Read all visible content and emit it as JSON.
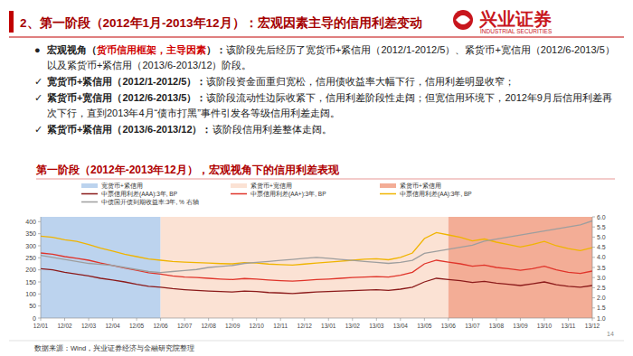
{
  "slide": {
    "header": "2、第一阶段（2012年1月-2013年12月）：宏观因素主导的信用利差变动",
    "logo": {
      "name": "兴业证券",
      "english": "INDUSTRIAL SECURITIES"
    },
    "bullets": [
      {
        "symbol": "●",
        "runs": [
          {
            "text": "宏观视角（",
            "style": "bold"
          },
          {
            "text": "货币信用框架，主导因素",
            "style": "red"
          },
          {
            "text": "）：",
            "style": "bold"
          },
          {
            "text": "该阶段先后经历了宽货币+紧信用（2012/1-2012/5）、紧货币+宽信用（2012/6-2013/5）以及紧货币+紧信用（2013/6-2013/12）阶段。",
            "style": "plain"
          }
        ]
      },
      {
        "symbol": "✓",
        "runs": [
          {
            "text": "宽货币+紧信用（2012/1-2012/5）：",
            "style": "bold"
          },
          {
            "text": "该阶段资金面重归宽松，信用债收益率大幅下行，信用利差明显收窄；",
            "style": "plain"
          }
        ]
      },
      {
        "symbol": "✓",
        "runs": [
          {
            "text": "紧货币+宽信用（2012/6-2013/5）：",
            "style": "bold"
          },
          {
            "text": "该阶段流动性边际收紧下，信用利差阶段性走阔；但宽信用环境下，2012年9月后信用利差再次下行，直到2013年4月“债市打黑”事件引发各等级信用利差走阔。",
            "style": "plain"
          }
        ]
      },
      {
        "symbol": "✓",
        "runs": [
          {
            "text": "紧货币+紧信用（2013/6-2013/12）：",
            "style": "bold"
          },
          {
            "text": "该阶段信用利差整体走阔。",
            "style": "plain"
          }
        ]
      }
    ],
    "source": "数据来源：Wind，兴业证券经济与金融研究院整理",
    "page": 14
  },
  "chart_data": {
    "type": "line",
    "title": "第一阶段（2012年-2013年12月），宏观视角下的信用利差表现",
    "categories": [
      "12/01",
      null,
      "12/02",
      null,
      "12/03",
      null,
      "12/04",
      null,
      "12/05",
      null,
      "12/06",
      null,
      "12/07",
      null,
      "12/08",
      null,
      "12/09",
      null,
      "12/10",
      null,
      "12/11",
      null,
      "12/12",
      null,
      "13/01",
      null,
      "13/02",
      null,
      "13/03",
      null,
      "13/04",
      null,
      "13/05",
      null,
      "13/06",
      null,
      "13/07",
      null,
      "13/08",
      null,
      "13/09",
      null,
      "13/10",
      null,
      "13/11",
      null,
      "13/12"
    ],
    "phases": [
      {
        "name": "宽货币+紧信用",
        "color": "#bcd3ee",
        "start": "12/01",
        "end": "12/06"
      },
      {
        "name": "紧货币+宽信用",
        "color": "#fbe2d4",
        "start": "12/06",
        "end": "13/06"
      },
      {
        "name": "紧货币+紧信用",
        "color": "#f3ad96",
        "start": "13/06",
        "end": "13/12"
      }
    ],
    "series": [
      {
        "name": "中票信用利差(AAA):3年, BP",
        "color": "#8b1a1a",
        "values": [
          205,
          200,
          190,
          182,
          175,
          165,
          158,
          150,
          140,
          132,
          128,
          122,
          118,
          115,
          112,
          110,
          108,
          112,
          110,
          106,
          104,
          102,
          105,
          108,
          110,
          112,
          114,
          116,
          118,
          115,
          120,
          128,
          150,
          165,
          160,
          155,
          148,
          152,
          145,
          140,
          135,
          142,
          150,
          138,
          132,
          128,
          135
        ]
      },
      {
        "name": "中票信用利差(AA+):3年, BP",
        "color": "#e0342a",
        "values": [
          270,
          265,
          255,
          248,
          240,
          228,
          218,
          208,
          198,
          188,
          182,
          175,
          170,
          168,
          165,
          162,
          160,
          164,
          162,
          158,
          155,
          153,
          156,
          160,
          162,
          165,
          168,
          170,
          172,
          170,
          178,
          190,
          225,
          240,
          232,
          225,
          215,
          220,
          210,
          205,
          198,
          205,
          215,
          200,
          190,
          185,
          195
        ]
      },
      {
        "name": "中票信用利差(AA):3年, BP",
        "color": "#f0b400",
        "values": [
          340,
          335,
          325,
          318,
          305,
          290,
          278,
          265,
          255,
          245,
          240,
          235,
          232,
          230,
          228,
          226,
          225,
          230,
          228,
          224,
          222,
          220,
          224,
          228,
          232,
          236,
          240,
          244,
          246,
          242,
          252,
          270,
          330,
          355,
          345,
          335,
          320,
          328,
          315,
          305,
          295,
          305,
          318,
          300,
          288,
          280,
          292
        ]
      },
      {
        "name": "中债国开债到期收益率:3年, % 右轴",
        "color": "#9e9e9e",
        "axis": "y2",
        "values": [
          4.1,
          4.0,
          3.9,
          3.8,
          3.7,
          3.65,
          3.6,
          3.5,
          3.4,
          3.3,
          3.25,
          3.3,
          3.35,
          3.4,
          3.5,
          3.55,
          3.6,
          3.7,
          3.75,
          3.8,
          3.85,
          3.9,
          3.95,
          4.0,
          3.95,
          3.9,
          3.85,
          3.8,
          3.75,
          3.7,
          3.75,
          3.85,
          4.2,
          4.3,
          4.4,
          4.5,
          4.6,
          4.8,
          4.9,
          5.0,
          5.1,
          5.2,
          5.3,
          5.4,
          5.5,
          5.6,
          5.8
        ]
      }
    ],
    "ylim": [
      0,
      420
    ],
    "yticks": [
      0,
      50,
      100,
      150,
      200,
      250,
      300,
      350,
      400
    ],
    "y2lim": [
      1,
      6
    ],
    "y2ticks": [
      {
        "value": 1,
        "label": "1.0"
      },
      {
        "value": 1.5,
        "label": "1.5"
      },
      {
        "value": 2,
        "label": "2.0"
      },
      {
        "value": 2.5,
        "label": "2.5"
      },
      {
        "value": 3,
        "label": "3.0"
      },
      {
        "value": 3.5,
        "label": "3.5"
      },
      {
        "value": 4,
        "label": "4.0"
      },
      {
        "value": 4.5,
        "label": "4.5"
      },
      {
        "value": 5,
        "label": "5.0"
      },
      {
        "value": 5.5,
        "label": "5.5"
      },
      {
        "value": 6,
        "label": "6.0"
      }
    ],
    "grid": false,
    "legend": "top"
  }
}
